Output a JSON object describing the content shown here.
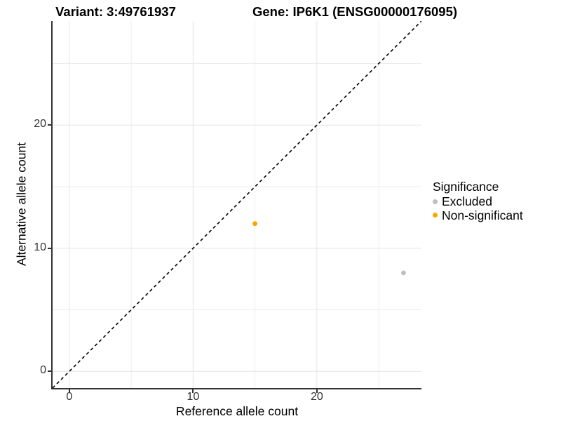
{
  "titles": {
    "variant": "Variant: 3:49761937",
    "gene": "Gene: IP6K1 (ENSG00000176095)"
  },
  "axes": {
    "x": {
      "label": "Reference allele count"
    },
    "y": {
      "label": "Alternative allele count"
    }
  },
  "legend": {
    "title": "Significance",
    "items": [
      {
        "label": "Excluded",
        "color": "#BEBEBE"
      },
      {
        "label": "Non-significant",
        "color": "#FFA500"
      }
    ]
  },
  "colors": {
    "axis_line": "#333333",
    "tick_label": "#333333",
    "grid_major": "#E4E4E4",
    "grid_minor": "#EDEDED",
    "identity_line": "#000000"
  },
  "chart_data": {
    "type": "scatter",
    "title": "Variant: 3:49761937 | Gene: IP6K1 (ENSG00000176095)",
    "xlabel": "Reference allele count",
    "ylabel": "Alternative allele count",
    "xlim": [
      -1.35,
      28.45
    ],
    "ylim": [
      -1.35,
      28.45
    ],
    "x_ticks": [
      0,
      10,
      20
    ],
    "y_ticks": [
      0,
      10,
      20
    ],
    "x_minor_ticks": [
      5,
      15,
      25
    ],
    "y_minor_ticks": [
      5,
      15,
      25
    ],
    "grid": true,
    "legend_title": "Significance",
    "legend_position": "right",
    "series": [
      {
        "name": "Excluded",
        "color": "#BEBEBE",
        "points": [
          [
            27,
            8
          ]
        ]
      },
      {
        "name": "Non-significant",
        "color": "#FFA500",
        "points": [
          [
            15,
            12
          ]
        ]
      }
    ],
    "identity_line": {
      "equation": "y = x",
      "style": "dashed",
      "color": "#000000"
    }
  }
}
